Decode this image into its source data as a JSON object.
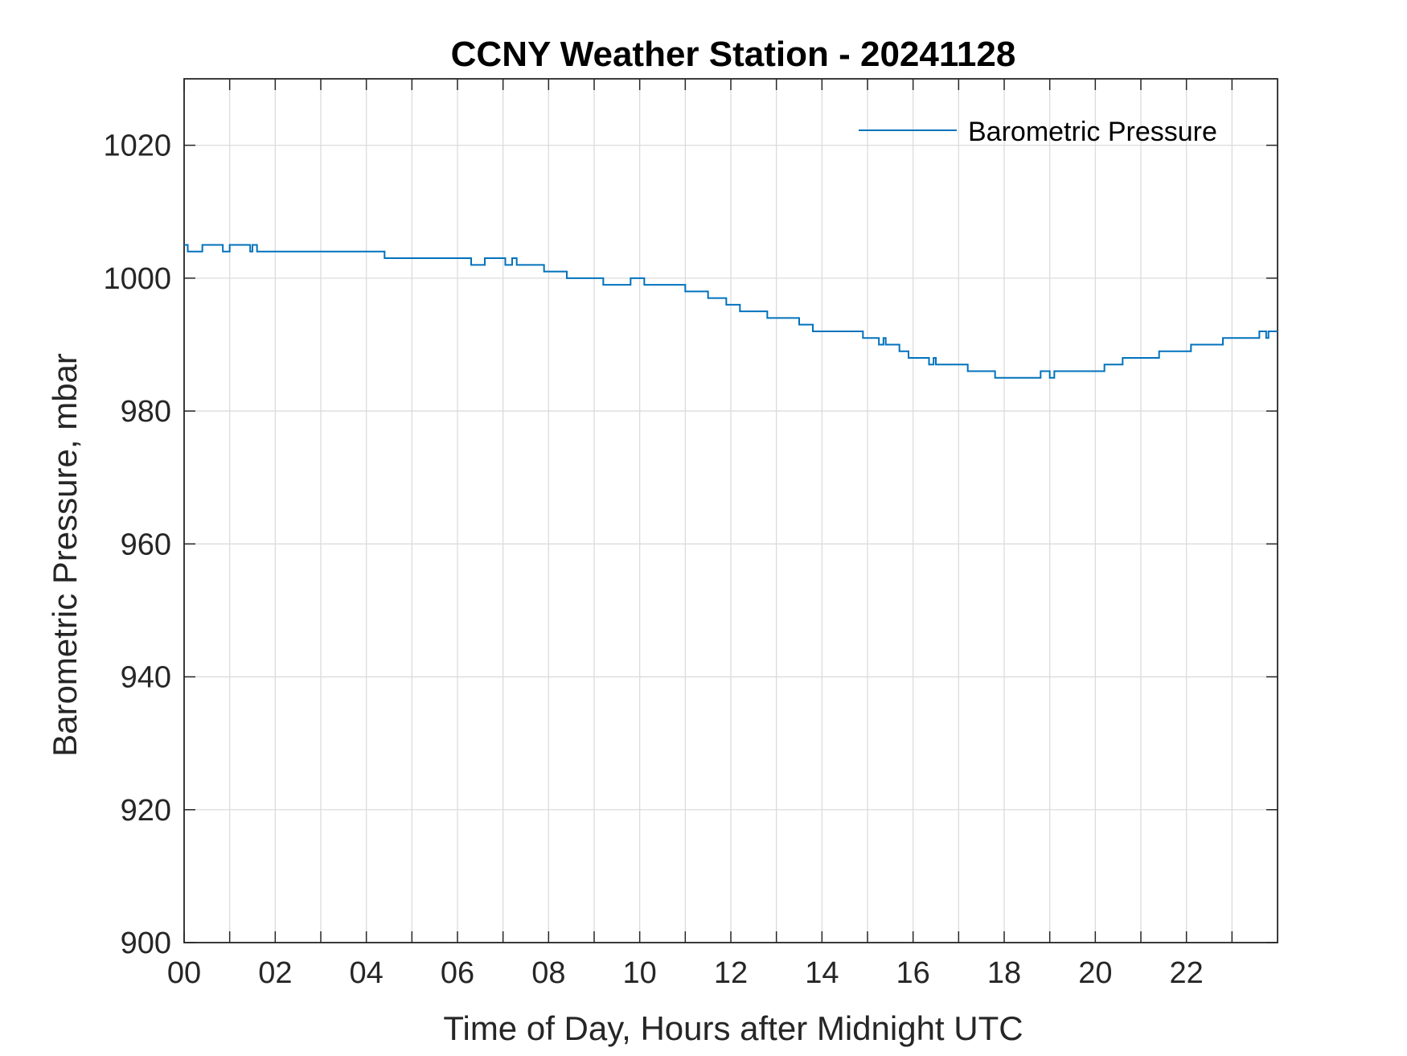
{
  "chart_data": {
    "type": "line",
    "title": "CCNY Weather Station - 20241128",
    "xlabel": "Time of Day, Hours after Midnight UTC",
    "ylabel": "Barometric Pressure, mbar",
    "xlim": [
      0,
      24
    ],
    "ylim": [
      900,
      1030
    ],
    "x_ticks": [
      0,
      2,
      4,
      6,
      8,
      10,
      12,
      14,
      16,
      18,
      20,
      22
    ],
    "x_tick_labels": [
      "00",
      "02",
      "04",
      "06",
      "08",
      "10",
      "12",
      "14",
      "16",
      "18",
      "20",
      "22"
    ],
    "x_minor_ticks": [
      1,
      3,
      5,
      7,
      9,
      11,
      13,
      15,
      17,
      19,
      21,
      23
    ],
    "y_ticks": [
      900,
      920,
      940,
      960,
      980,
      1000,
      1020
    ],
    "y_tick_labels": [
      "900",
      "920",
      "940",
      "960",
      "980",
      "1000",
      "1020"
    ],
    "grid": true,
    "legend_position": "top-right",
    "series": [
      {
        "name": "Barometric Pressure",
        "color": "#0072BD",
        "step": true,
        "x": [
          0,
          0.08,
          0.4,
          0.8,
          0.85,
          1.0,
          1.4,
          1.45,
          1.5,
          1.55,
          1.6,
          4.4,
          6.3,
          6.6,
          7.0,
          7.05,
          7.2,
          7.3,
          7.9,
          8.4,
          9.2,
          9.8,
          10.1,
          11.0,
          11.5,
          11.9,
          12.2,
          12.8,
          13.5,
          13.8,
          14.9,
          15.2,
          15.25,
          15.35,
          15.4,
          15.7,
          15.9,
          16.3,
          16.35,
          16.45,
          16.5,
          17.2,
          17.8,
          18.8,
          19.0,
          19.1,
          19.3,
          20.2,
          20.6,
          21.1,
          21.4,
          22.1,
          22.8,
          23.6,
          23.75,
          23.8,
          24
        ],
        "y": [
          1005,
          1004,
          1005,
          1005,
          1004,
          1005,
          1005,
          1004,
          1005,
          1005,
          1004,
          1003,
          1002,
          1003,
          1003,
          1002,
          1003,
          1002,
          1001,
          1000,
          999,
          1000,
          999,
          998,
          997,
          996,
          995,
          994,
          993,
          992,
          991,
          991,
          990,
          991,
          990,
          989,
          988,
          988,
          987,
          988,
          987,
          986,
          985,
          986,
          985,
          986,
          986,
          987,
          988,
          988,
          989,
          990,
          991,
          992,
          991,
          992,
          992
        ]
      }
    ]
  }
}
